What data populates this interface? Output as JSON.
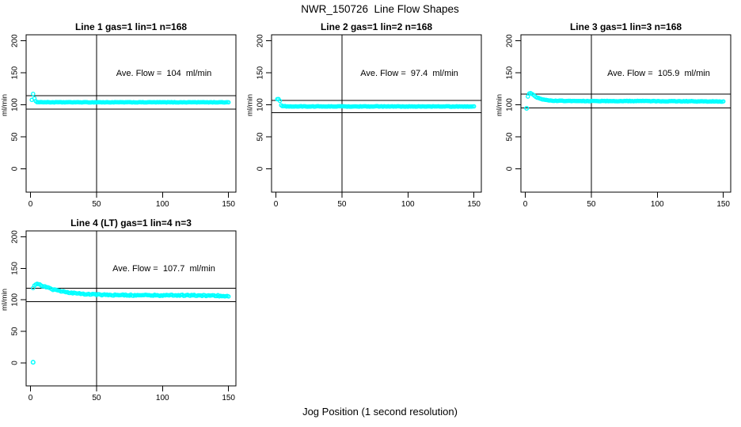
{
  "figure": {
    "title": "NWR_150726  Line Flow Shapes",
    "xlabel": "Jog Position (1 second resolution)",
    "background": "#ffffff",
    "point_color": "#00ffff",
    "line_color": "#000000"
  },
  "chart_data": [
    {
      "type": "scatter",
      "title": "Line 1 gas=1 lin=1 n=168",
      "ylabel": "ml/min",
      "ave_flow": 104,
      "ave_flow_label": "Ave. Flow =  104  ml/min",
      "x_ticks": [
        0,
        50,
        100,
        150
      ],
      "y_ticks": [
        0,
        50,
        100,
        150,
        200
      ],
      "xlim": [
        -3.3,
        155.6
      ],
      "ylim": [
        -36.5,
        209.5
      ],
      "vline_x": 50,
      "hlines": [
        114.4,
        93.6
      ],
      "x_range": [
        1,
        150
      ],
      "x_step": 1,
      "keypoints": [
        [
          1,
          108
        ],
        [
          2,
          117
        ],
        [
          3,
          110
        ],
        [
          4,
          105.5
        ],
        [
          5,
          104.5
        ],
        [
          8,
          104.2
        ],
        [
          15,
          104
        ],
        [
          150,
          104
        ]
      ],
      "noise": 0.35,
      "outliers": []
    },
    {
      "type": "scatter",
      "title": "Line 2 gas=1 lin=2 n=168",
      "ylabel": "ml/min",
      "ave_flow": 97.4,
      "ave_flow_label": "Ave. Flow =  97.4  ml/min",
      "x_ticks": [
        0,
        50,
        100,
        150
      ],
      "y_ticks": [
        0,
        50,
        100,
        150,
        200
      ],
      "xlim": [
        -3.3,
        155.6
      ],
      "ylim": [
        -36.5,
        209.5
      ],
      "vline_x": 50,
      "hlines": [
        107.1,
        87.7
      ],
      "x_range": [
        1,
        150
      ],
      "x_step": 1,
      "keypoints": [
        [
          1,
          108.5
        ],
        [
          2,
          108.8
        ],
        [
          3,
          106
        ],
        [
          4,
          99.5
        ],
        [
          5,
          98.2
        ],
        [
          6,
          97.8
        ],
        [
          10,
          97.5
        ],
        [
          150,
          97.4
        ]
      ],
      "noise": 0.4,
      "outliers": []
    },
    {
      "type": "scatter",
      "title": "Line 3 gas=1 lin=3 n=168",
      "ylabel": "ml/min",
      "ave_flow": 105.9,
      "ave_flow_label": "Ave. Flow =  105.9  ml/min",
      "x_ticks": [
        0,
        50,
        100,
        150
      ],
      "y_ticks": [
        0,
        50,
        100,
        150,
        200
      ],
      "xlim": [
        -3.3,
        155.6
      ],
      "ylim": [
        -36.5,
        209.5
      ],
      "vline_x": 50,
      "hlines": [
        116.5,
        95.3
      ],
      "x_range": [
        2,
        150
      ],
      "x_step": 1,
      "keypoints": [
        [
          2,
          113
        ],
        [
          3,
          117.5
        ],
        [
          4,
          118
        ],
        [
          5,
          117
        ],
        [
          6,
          115.5
        ],
        [
          8,
          112.5
        ],
        [
          10,
          110.5
        ],
        [
          13,
          108.5
        ],
        [
          16,
          107.3
        ],
        [
          20,
          106.5
        ],
        [
          25,
          106.2
        ],
        [
          40,
          106
        ],
        [
          80,
          105.9
        ],
        [
          120,
          105.6
        ],
        [
          150,
          105.2
        ]
      ],
      "noise": 0.4,
      "outliers": [
        [
          1,
          94.5
        ]
      ]
    },
    {
      "type": "scatter",
      "title": "Line 4 (LT) gas=1 lin=4 n=3",
      "ylabel": "ml/min",
      "ave_flow": 107.7,
      "ave_flow_label": "Ave. Flow =  107.7  ml/min",
      "x_ticks": [
        0,
        50,
        100,
        150
      ],
      "y_ticks": [
        0,
        50,
        100,
        150,
        200
      ],
      "xlim": [
        -3.3,
        155.6
      ],
      "ylim": [
        -36.5,
        209.5
      ],
      "vline_x": 50,
      "hlines": [
        118.5,
        96.9
      ],
      "x_range": [
        2,
        150
      ],
      "x_step": 1,
      "keypoints": [
        [
          2,
          119.5
        ],
        [
          3,
          123.5
        ],
        [
          4,
          125
        ],
        [
          5,
          125.5
        ],
        [
          7,
          124.5
        ],
        [
          9,
          122.5
        ],
        [
          12,
          120
        ],
        [
          15,
          117.8
        ],
        [
          18,
          116
        ],
        [
          22,
          114
        ],
        [
          26,
          112.5
        ],
        [
          30,
          111.5
        ],
        [
          35,
          110.3
        ],
        [
          40,
          109.5
        ],
        [
          45,
          109
        ],
        [
          50,
          108.5
        ],
        [
          60,
          107.8
        ],
        [
          70,
          107.6
        ],
        [
          80,
          107.4
        ],
        [
          90,
          107.5
        ],
        [
          100,
          107.2
        ],
        [
          110,
          107.3
        ],
        [
          120,
          107.2
        ],
        [
          130,
          106.9
        ],
        [
          140,
          106.7
        ],
        [
          150,
          106
        ]
      ],
      "noise": 0.9,
      "outliers": [
        [
          2,
          1
        ]
      ]
    }
  ]
}
